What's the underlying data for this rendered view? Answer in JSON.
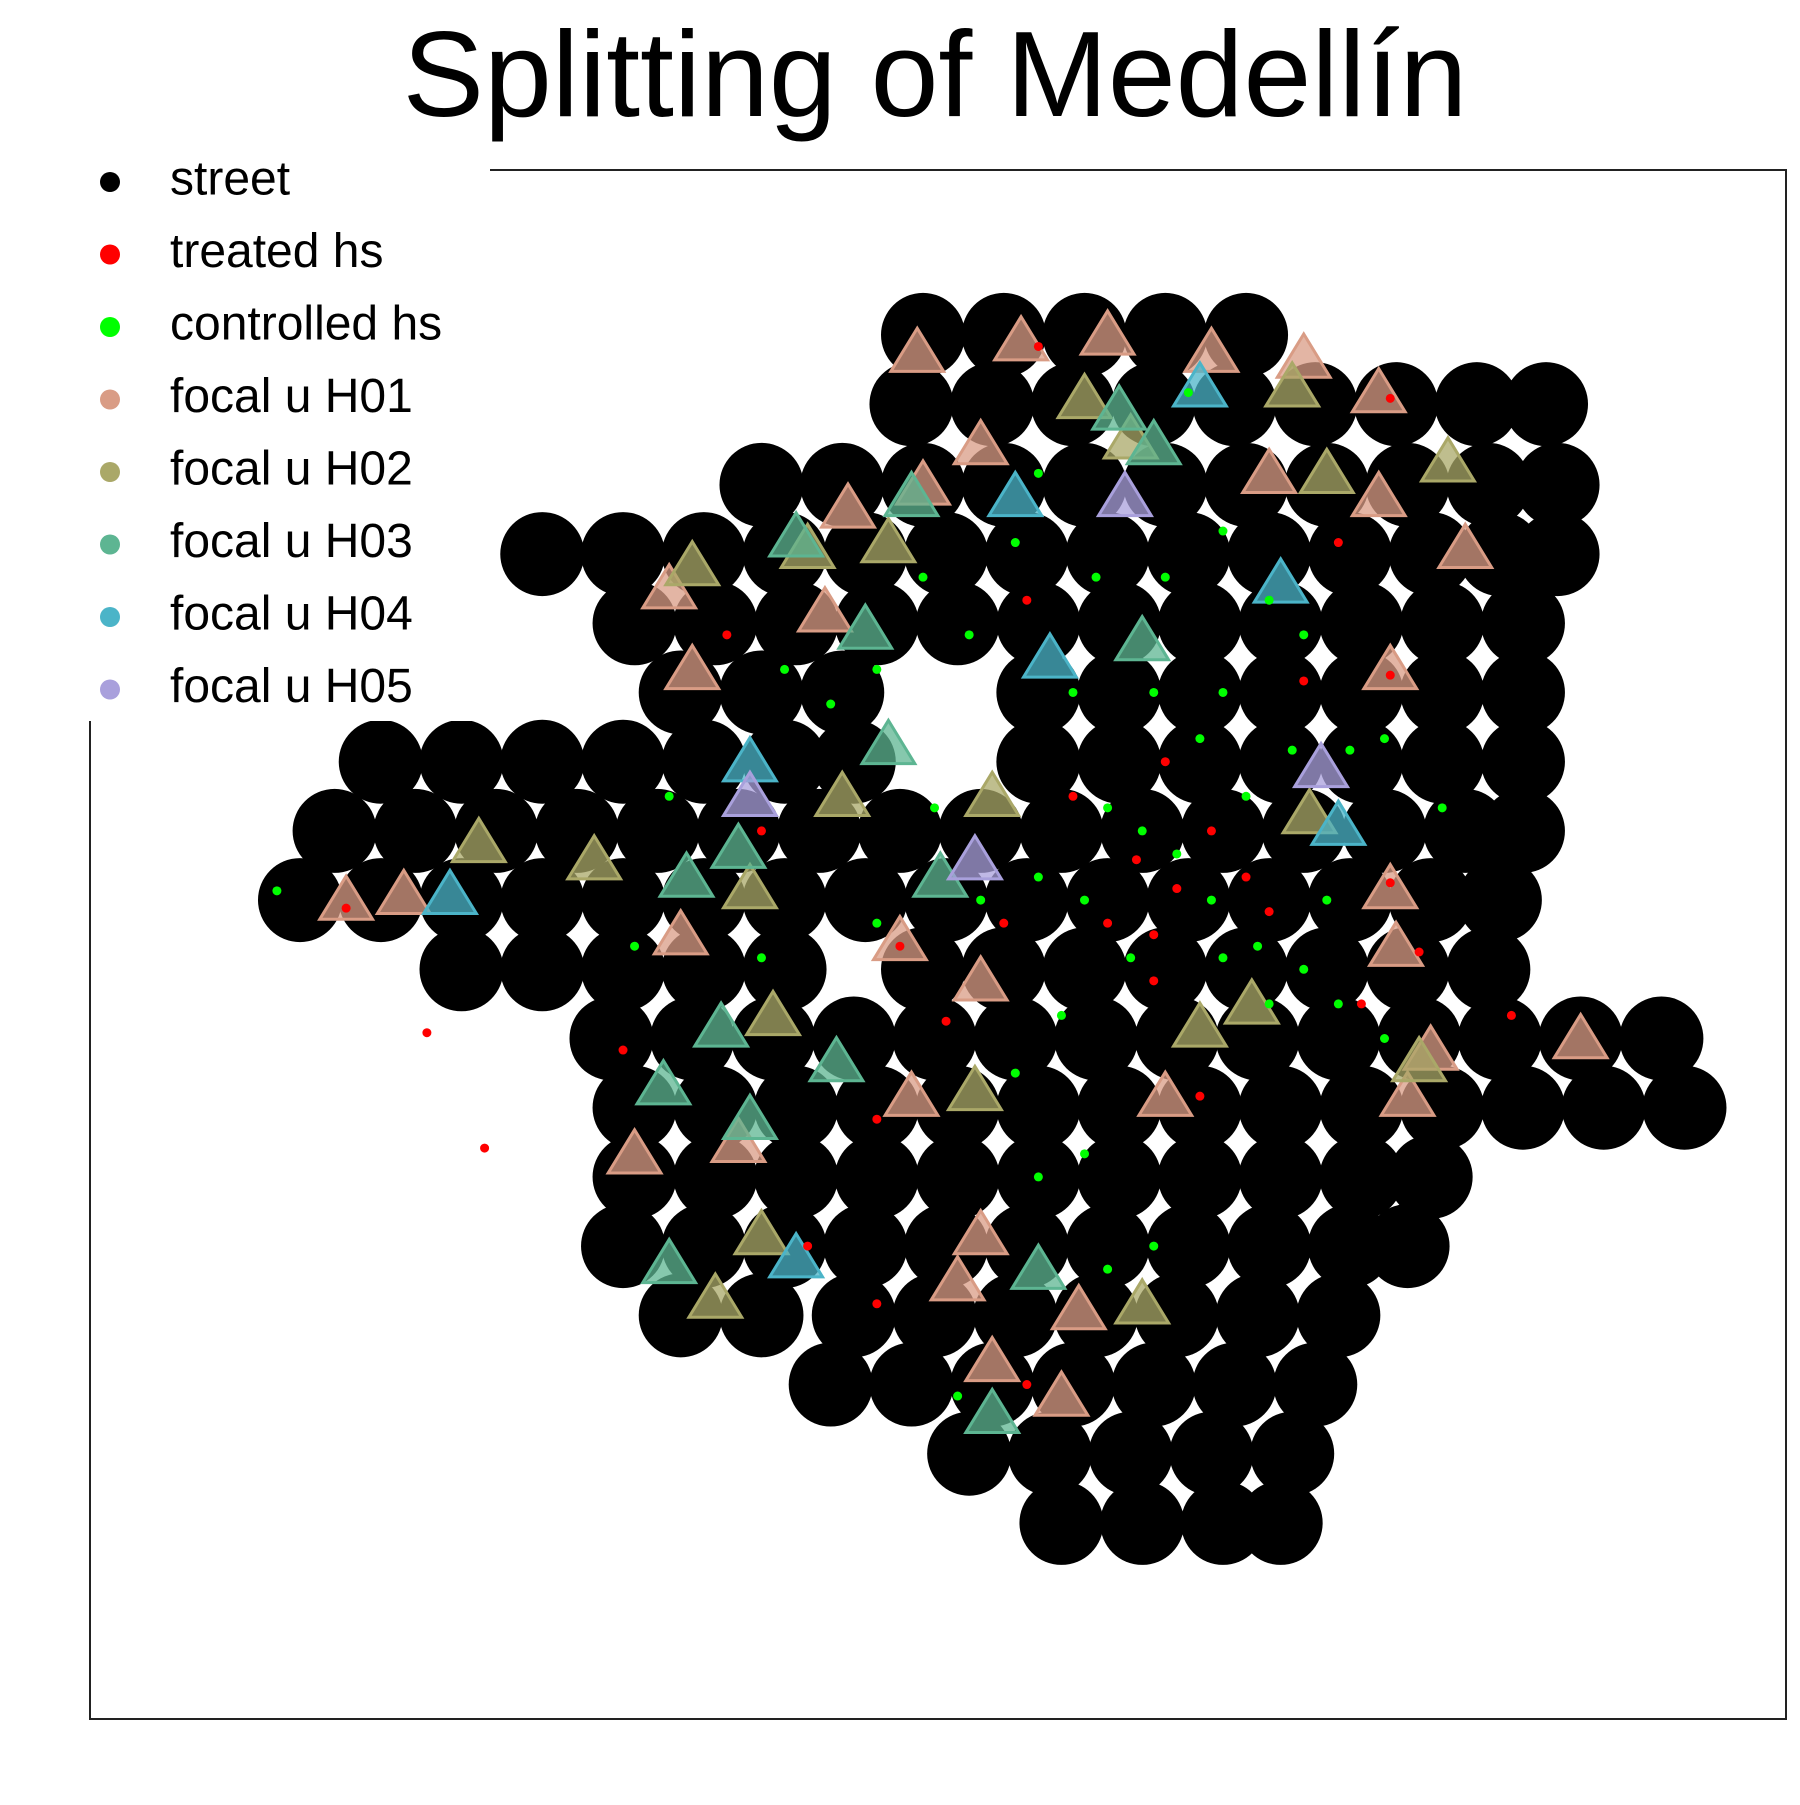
{
  "chart_data": {
    "type": "scatter",
    "title": "Splitting of Medellín",
    "xlim": [
      0,
      1470
    ],
    "ylim": [
      0,
      1343
    ],
    "legend": "top-left",
    "frame": true,
    "series": [
      {
        "name": "street",
        "color": "#000000",
        "marker": "circle",
        "x": [
          722,
          792,
          862,
          932,
          1002,
          712,
          782,
          852,
          922,
          992,
          1062,
          1132,
          1202,
          1262,
          582,
          652,
          722,
          792,
          862,
          932,
          1002,
          1072,
          1142,
          1212,
          1272,
          392,
          462,
          532,
          602,
          672,
          742,
          812,
          882,
          952,
          1022,
          1092,
          1162,
          1222,
          1272,
          472,
          542,
          612,
          682,
          752,
          822,
          892,
          962,
          1032,
          1102,
          1172,
          1242,
          512,
          582,
          652,
          822,
          892,
          962,
          1032,
          1102,
          1172,
          1242,
          252,
          322,
          392,
          462,
          532,
          602,
          662,
          822,
          892,
          962,
          1032,
          1102,
          1172,
          1242,
          212,
          282,
          352,
          422,
          492,
          562,
          632,
          702,
          772,
          842,
          912,
          982,
          1052,
          1122,
          1192,
          1242,
          182,
          252,
          322,
          392,
          462,
          532,
          602,
          672,
          742,
          812,
          882,
          952,
          1022,
          1092,
          1162,
          1222,
          322,
          392,
          462,
          532,
          602,
          722,
          792,
          862,
          932,
          1002,
          1072,
          1142,
          1212,
          452,
          522,
          592,
          662,
          732,
          802,
          872,
          942,
          1012,
          1082,
          1152,
          1222,
          1292,
          1362,
          472,
          542,
          612,
          682,
          752,
          822,
          892,
          962,
          1032,
          1102,
          1172,
          1242,
          1312,
          1382,
          472,
          542,
          612,
          682,
          752,
          822,
          892,
          962,
          1032,
          1102,
          1162,
          462,
          532,
          602,
          672,
          742,
          812,
          882,
          952,
          1022,
          1092,
          1142,
          512,
          582,
          662,
          732,
          802,
          872,
          942,
          1012,
          1082,
          642,
          712,
          782,
          852,
          922,
          992,
          1062,
          762,
          832,
          902,
          972,
          1042,
          842,
          912,
          982,
          1032
        ],
        "y": [
          1200,
          1200,
          1200,
          1200,
          1200,
          1140,
          1140,
          1140,
          1140,
          1140,
          1140,
          1140,
          1140,
          1140,
          1070,
          1070,
          1070,
          1070,
          1070,
          1070,
          1070,
          1070,
          1070,
          1070,
          1070,
          1010,
          1010,
          1010,
          1010,
          1010,
          1010,
          1010,
          1010,
          1010,
          1010,
          1010,
          1010,
          1010,
          1010,
          950,
          950,
          950,
          950,
          950,
          950,
          950,
          950,
          950,
          950,
          950,
          950,
          890,
          890,
          890,
          890,
          890,
          890,
          890,
          890,
          890,
          890,
          830,
          830,
          830,
          830,
          830,
          830,
          830,
          830,
          830,
          830,
          830,
          830,
          830,
          830,
          770,
          770,
          770,
          770,
          770,
          770,
          770,
          770,
          770,
          770,
          770,
          770,
          770,
          770,
          770,
          770,
          710,
          710,
          710,
          710,
          710,
          710,
          710,
          710,
          710,
          710,
          710,
          710,
          710,
          710,
          710,
          710,
          650,
          650,
          650,
          650,
          650,
          650,
          650,
          650,
          650,
          650,
          650,
          650,
          650,
          590,
          590,
          590,
          590,
          590,
          590,
          590,
          590,
          590,
          590,
          590,
          590,
          590,
          590,
          530,
          530,
          530,
          530,
          530,
          530,
          530,
          530,
          530,
          530,
          530,
          530,
          530,
          530,
          470,
          470,
          470,
          470,
          470,
          470,
          470,
          470,
          470,
          470,
          470,
          410,
          410,
          410,
          410,
          410,
          410,
          410,
          410,
          410,
          410,
          410,
          350,
          350,
          350,
          350,
          350,
          350,
          350,
          350,
          350,
          290,
          290,
          290,
          290,
          290,
          290,
          290,
          230,
          230,
          230,
          230,
          230,
          170,
          170,
          170,
          170
        ]
      },
      {
        "name": "treated hs",
        "color": "#ff0000",
        "marker": "circle",
        "x": [
          822,
          1127,
          1127,
          1127,
          907,
          942,
          972,
          1002,
          882,
          922,
          1022,
          812,
          552,
          742,
          962,
          702,
          342,
          682,
          582,
          682,
          1082,
          1052,
          852,
          932,
          792,
          462,
          622,
          812,
          1232,
          1152,
          222,
          292,
          922,
          1102
        ],
        "y": [
          1190,
          1145,
          905,
          725,
          745,
          720,
          770,
          730,
          690,
          680,
          700,
          970,
          940,
          605,
          540,
          670,
          495,
          360,
          770,
          520,
          1020,
          900,
          800,
          830,
          690,
          580,
          410,
          290,
          610,
          665,
          703,
          595,
          640,
          620
        ]
      },
      {
        "name": "controlled hs",
        "color": "#00ff00",
        "marker": "circle",
        "x": [
          952,
          822,
          872,
          982,
          1022,
          1052,
          922,
          962,
          1002,
          882,
          912,
          942,
          972,
          1012,
          1052,
          1072,
          1092,
          1122,
          862,
          902,
          982,
          822,
          772,
          732,
          642,
          602,
          682,
          582,
          762,
          852,
          922,
          882,
          822,
          802,
          752,
          862,
          1022,
          1082,
          1122,
          502,
          162,
          472,
          682,
          1042,
          1172,
          842,
          982,
          932,
          802,
          722
        ],
        "y": [
          1150,
          1080,
          990,
          1030,
          970,
          940,
          890,
          850,
          800,
          790,
          770,
          750,
          710,
          670,
          650,
          710,
          840,
          850,
          710,
          660,
          660,
          730,
          710,
          790,
          880,
          910,
          690,
          660,
          940,
          890,
          410,
          390,
          470,
          560,
          280,
          490,
          620,
          620,
          590,
          800,
          718,
          670,
          910,
          840,
          790,
          610,
          890,
          990,
          1020,
          990
        ]
      },
      {
        "name": "focal u H01",
        "color": "#d99c85",
        "marker": "triangle",
        "x": [
          717,
          807,
          882,
          972,
          1052,
          1117,
          772,
          722,
          1022,
          1117,
          1192,
          1127,
          502,
          522,
          222,
          272,
          637,
          1127,
          1132,
          1162,
          1142,
          472,
          562,
          712,
          932,
          782,
          842,
          752,
          772,
          857,
          1292,
          657,
          702,
          772,
          512
        ],
        "y": [
          1185,
          1195,
          1200,
          1185,
          1180,
          1150,
          1105,
          1070,
          1080,
          1060,
          1015,
          910,
          980,
          910,
          710,
          715,
          960,
          720,
          670,
          580,
          540,
          490,
          500,
          540,
          540,
          310,
          280,
          380,
          420,
          355,
          590,
          1050,
          675,
          640,
          680
        ]
      },
      {
        "name": "focal u H02",
        "color": "#aaa868",
        "marker": "triangle",
        "x": [
          1072,
          1042,
          862,
          1177,
          902,
          522,
          692,
          622,
          437,
          572,
          652,
          782,
          1007,
          1057,
          582,
          542,
          592,
          1152,
          767,
          962,
          337,
          912
        ],
        "y": [
          1080,
          1155,
          1145,
          1090,
          1110,
          1000,
          1020,
          1015,
          745,
          720,
          800,
          800,
          620,
          785,
          420,
          365,
          610,
          570,
          545,
          600,
          760,
          360
        ]
      },
      {
        "name": "focal u H03",
        "color": "#5db592",
        "marker": "triangle",
        "x": [
          612,
          712,
          892,
          922,
          692,
          517,
          562,
          497,
          547,
          572,
          647,
          737,
          782,
          822,
          502,
          672,
          912
        ],
        "y": [
          1025,
          1060,
          1135,
          1105,
          845,
          730,
          755,
          550,
          600,
          520,
          570,
          730,
          265,
          390,
          395,
          945,
          935
        ]
      },
      {
        "name": "focal u H04",
        "color": "#4bb4c8",
        "marker": "triangle",
        "x": [
          1032,
          312,
          1082,
          832,
          572,
          612,
          962,
          802
        ],
        "y": [
          985,
          715,
          775,
          920,
          830,
          400,
          1155,
          1060
        ]
      },
      {
        "name": "focal u H05",
        "color": "#a9a0dc",
        "marker": "triangle",
        "x": [
          897,
          767,
          1067,
          572
        ],
        "y": [
          1060,
          745,
          825,
          800
        ]
      }
    ]
  }
}
